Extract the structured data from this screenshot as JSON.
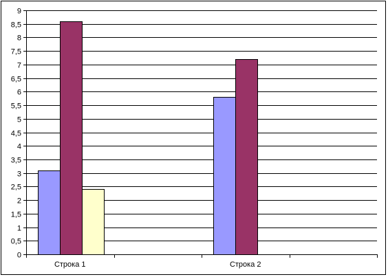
{
  "chart_data": {
    "type": "bar",
    "categories": [
      "Строка 1",
      "Строка 2"
    ],
    "series": [
      {
        "values": [
          3.1,
          5.8
        ],
        "color": "#9999ff"
      },
      {
        "values": [
          8.6,
          7.2
        ],
        "color": "#993366"
      },
      {
        "values": [
          2.4,
          0
        ],
        "color": "#ffffcc"
      }
    ],
    "ylim": [
      0,
      9
    ],
    "ytick_step": 0.5,
    "ytick_labels": [
      "0",
      "0,5",
      "1",
      "1,5",
      "2",
      "2,5",
      "3",
      "3,5",
      "4",
      "4,5",
      "5",
      "5,5",
      "6",
      "6,5",
      "7",
      "7,5",
      "8",
      "8,5",
      "9"
    ],
    "grid": true,
    "legend": "none",
    "title": "",
    "xlabel": "",
    "ylabel": ""
  }
}
